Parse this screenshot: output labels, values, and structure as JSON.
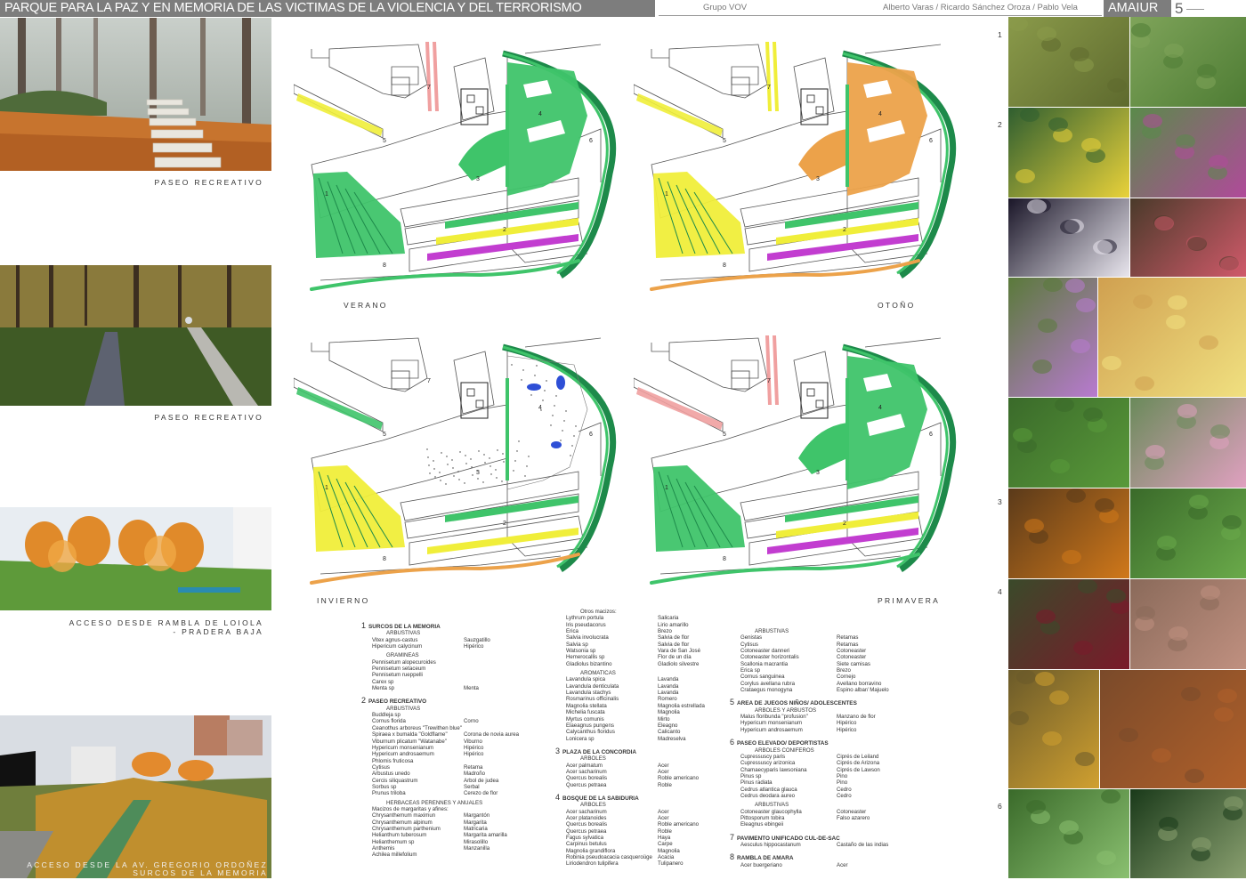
{
  "header": {
    "title": "PARQUE PARA LA PAZ Y EN MEMORIA DE LAS VICTIMAS DE LA VIOLENCIA Y DEL TERRORISMO",
    "group": "Grupo VOV",
    "authors": "Alberto Varas / Ricardo Sánchez Oroza / Pablo Vela",
    "brand": "AMAIUR",
    "page": "5"
  },
  "left_captions": {
    "c1": "PASEO RECREATIVO",
    "c2": "PASEO RECREATIVO",
    "c3a": "ACCESO DESDE RAMBLA DE LOIOLA",
    "c3b": "- PRADERA BAJA",
    "c4a": "ACCESO DESDE LA AV. GREGORIO ORDOÑEZ",
    "c4b": "SURCOS DE LA MEMORIA"
  },
  "seasons": {
    "verano": "VERANO",
    "otono": "OTOÑO",
    "invierno": "INVIERNO",
    "primavera": "PRIMAVERA"
  },
  "plan_labels": [
    "1",
    "2",
    "3",
    "4",
    "5",
    "6",
    "7",
    "8"
  ],
  "right_markers": [
    "1",
    "2",
    "3",
    "4",
    "6"
  ],
  "colors": {
    "header_grey": "#7d7d7d",
    "plan_green": "#3fc46a",
    "plan_dark_green": "#1d8a4a",
    "plan_yellow": "#f0ee3a",
    "plan_magenta": "#c23dd0",
    "plan_orange": "#eca24a",
    "plan_pink": "#f0a0a0",
    "plan_blue": "#2e4fd6"
  },
  "plants": {
    "col1": [
      {
        "h": "SURCOS DE LA MEMORIA",
        "n": "1"
      },
      {
        "s": "ARBUSTIVAS"
      },
      {
        "r": [
          "Vitex agnus-castus",
          "Sauzgatillo"
        ]
      },
      {
        "r": [
          "Hipericum calycinum",
          "Hipérico"
        ]
      },
      {
        "g": ""
      },
      {
        "s": "GRAMINEAS"
      },
      {
        "r": [
          "Pennisetum alopecuroides",
          ""
        ]
      },
      {
        "r": [
          "Pennisetum setaceum",
          ""
        ]
      },
      {
        "r": [
          "Pennisetum rueppelli",
          ""
        ]
      },
      {
        "r": [
          "Carex sp",
          ""
        ]
      },
      {
        "r": [
          "Menta sp",
          "Menta"
        ]
      },
      {
        "g": ""
      },
      {
        "h": "PASEO RECREATIVO",
        "n": "2"
      },
      {
        "s": "ARBUSTIVAS"
      },
      {
        "r": [
          "Buddleja sp",
          ""
        ]
      },
      {
        "r": [
          "Cornus florida",
          "Corno"
        ]
      },
      {
        "r": [
          "Ceanothus arboreus \"Trewithen blue\"",
          ""
        ]
      },
      {
        "r": [
          "Spiraea x bumalda \"Goldflame\"",
          "Corona de novia aurea"
        ]
      },
      {
        "r": [
          "Viburnum plicatum \"Watanabe\"",
          "Viburno"
        ]
      },
      {
        "r": [
          "Hypericum monsenianum",
          "Hipérico"
        ]
      },
      {
        "r": [
          "Hypericum androsaemum",
          "Hipérico"
        ]
      },
      {
        "r": [
          "Phlomis fruticosa",
          ""
        ]
      },
      {
        "r": [
          "Cytisus",
          "Retama"
        ]
      },
      {
        "r": [
          "Arbustus unedo",
          "Madroño"
        ]
      },
      {
        "r": [
          "Cercis siliquastrum",
          "Arbol de judea"
        ]
      },
      {
        "r": [
          "Sorbus sp",
          "Serbal"
        ]
      },
      {
        "r": [
          "Prunus triloba",
          "Cerezo de flor"
        ]
      },
      {
        "g": ""
      },
      {
        "s": "HERBACEAS PERENNES Y ANUALES"
      },
      {
        "r": [
          "Macizos de margaritas y afines:",
          ""
        ]
      },
      {
        "r": [
          "Chrysanthemum maximun",
          "Margantón"
        ]
      },
      {
        "r": [
          "Chrysanthemum alpinum",
          "Margarita"
        ]
      },
      {
        "r": [
          "Chrysanthemum parthenium",
          "Matricaria"
        ]
      },
      {
        "r": [
          "Helianthum tuberosum",
          "Margarita amarilla"
        ]
      },
      {
        "r": [
          "Helianthemum sp",
          "Mirasolillo"
        ]
      },
      {
        "r": [
          "Anthemis",
          "Manzanilla"
        ]
      },
      {
        "r": [
          "Achilea millefolium",
          ""
        ]
      }
    ],
    "col2": [
      {
        "s": "Otros macizos:"
      },
      {
        "r": [
          "Lythrum portula",
          "Salicaria"
        ]
      },
      {
        "r": [
          "Iris pseudacorus",
          "Lirio amarillo"
        ]
      },
      {
        "r": [
          "Erica",
          "Brezo"
        ]
      },
      {
        "r": [
          "Salvia involucrata",
          "Salvia de flor"
        ]
      },
      {
        "r": [
          "Salvia sp",
          "Salvia de flor"
        ]
      },
      {
        "r": [
          "Watsonia sp",
          "Vara de San José"
        ]
      },
      {
        "r": [
          "Hemerocallis sp",
          "Flor de un día"
        ]
      },
      {
        "r": [
          "Gladiolus bizantino",
          "Gladiolo silvestre"
        ]
      },
      {
        "g": ""
      },
      {
        "s": "AROMATICAS"
      },
      {
        "r": [
          "Lavandula spica",
          "Lavanda"
        ]
      },
      {
        "r": [
          "Lavandula denticulata",
          "Lavanda"
        ]
      },
      {
        "r": [
          "Lavandula stachys",
          "Lavanda"
        ]
      },
      {
        "r": [
          "Rosmarinus officinalis",
          "Romero"
        ]
      },
      {
        "r": [
          "Magnolia stellata",
          "Magnolia estrellada"
        ]
      },
      {
        "r": [
          "Michelia fuscata",
          "Magnolia"
        ]
      },
      {
        "r": [
          "Myrtus comunis",
          "Mirto"
        ]
      },
      {
        "r": [
          "Elaeagnus pungens",
          "Eleagno"
        ]
      },
      {
        "r": [
          "Calycanthus floridus",
          "Calicanto"
        ]
      },
      {
        "r": [
          "Lonicera sp",
          "Madreselva"
        ]
      },
      {
        "g": ""
      },
      {
        "h": "PLAZA DE LA CONCORDIA",
        "n": "3"
      },
      {
        "s": "ARBOLES"
      },
      {
        "r": [
          "Acer palmatum",
          "Acer"
        ]
      },
      {
        "r": [
          "Acer sacharinum",
          "Acer"
        ]
      },
      {
        "r": [
          "Quercus borealis",
          "Roble americano"
        ]
      },
      {
        "r": [
          "Quercus petraea",
          "Roble"
        ]
      },
      {
        "g": ""
      },
      {
        "h": "BOSQUE DE LA SABIDURIA",
        "n": "4"
      },
      {
        "s": "ARBOLES"
      },
      {
        "r": [
          "Acer sacharinum",
          "Acer"
        ]
      },
      {
        "r": [
          "Acer platanoides",
          "Acer"
        ]
      },
      {
        "r": [
          "Quercus borealis",
          "Roble americano"
        ]
      },
      {
        "r": [
          "Quercus petraea",
          "Roble"
        ]
      },
      {
        "r": [
          "Fagus sylvatica",
          "Haya"
        ]
      },
      {
        "r": [
          "Carpinus betulus",
          "Carpe"
        ]
      },
      {
        "r": [
          "Magnolia grandiflora",
          "Magnolia"
        ]
      },
      {
        "r": [
          "Robinia pseudoacacia casqueroüge",
          "Acacia"
        ]
      },
      {
        "r": [
          "Liriodendron tulipifera",
          "Tulipanero"
        ]
      }
    ],
    "col3": [
      {
        "s": "ARBUSTIVAS"
      },
      {
        "r": [
          "Genistas",
          "Retamas"
        ]
      },
      {
        "r": [
          "Cytisus",
          "Retamas"
        ]
      },
      {
        "r": [
          "Cotoneaster danneri",
          "Cotoneaster"
        ]
      },
      {
        "r": [
          "Cotoneaster horizontalis",
          "Cotoneaster"
        ]
      },
      {
        "r": [
          "Scallonia macrantia",
          "Siete camisas"
        ]
      },
      {
        "r": [
          "Erica sp",
          "Brezo"
        ]
      },
      {
        "r": [
          "Cornus sanguinea",
          "Cornejo"
        ]
      },
      {
        "r": [
          "Corylus avellana rubra",
          "Avellano borravino"
        ]
      },
      {
        "r": [
          "Crataegus monogyna",
          "Espino albar/ Majuelo"
        ]
      },
      {
        "g": ""
      },
      {
        "h": "AREA DE JUEGOS NIÑOS/ ADOLESCENTES",
        "n": "5"
      },
      {
        "s": "ARBOLES Y ARBUSTOS"
      },
      {
        "r": [
          "Malus floribunda \"profusion\"",
          "Manzano de flor"
        ]
      },
      {
        "r": [
          "Hypericum monsenianum",
          "Hipérico"
        ]
      },
      {
        "r": [
          "Hypericum androsaemum",
          "Hipérico"
        ]
      },
      {
        "g": ""
      },
      {
        "h": "PASEO ELEVADO/ DEPORTISTAS",
        "n": "6"
      },
      {
        "s": "ARBOLES CONIFEROS"
      },
      {
        "r": [
          "Cupressuscy paris",
          "Ciprés de Leiland"
        ]
      },
      {
        "r": [
          "Cupressuscy arizonica",
          "Ciprés de Arizona"
        ]
      },
      {
        "r": [
          "Chamaecyparis lawsoniana",
          "Ciprés de Lawson"
        ]
      },
      {
        "r": [
          "Pinus sp",
          "Pino"
        ]
      },
      {
        "r": [
          "Pinus radiata",
          "Pino"
        ]
      },
      {
        "r": [
          "Cedrus atlantica glauca",
          "Cedro"
        ]
      },
      {
        "r": [
          "Cedrus deodara aureo",
          "Cedro"
        ]
      },
      {
        "g": ""
      },
      {
        "s": "ARBUSTIVAS"
      },
      {
        "r": [
          "Cotoneaster glaucophylla",
          "Cotoneaster"
        ]
      },
      {
        "r": [
          "Pittosporum tobira",
          "Falso azarero"
        ]
      },
      {
        "r": [
          "Eleagnus ebingeii",
          ""
        ]
      },
      {
        "g": ""
      },
      {
        "h": "PAVIMENTO UNIFICADO CUL-DE-SAC",
        "n": "7"
      },
      {
        "r": [
          "Aesculus hippocastanum",
          "Castaño de las indias"
        ]
      },
      {
        "g": ""
      },
      {
        "h": "RAMBLA DE AMARA",
        "n": "8"
      },
      {
        "r": [
          "Acer buergeriano",
          "Acer"
        ]
      }
    ]
  }
}
